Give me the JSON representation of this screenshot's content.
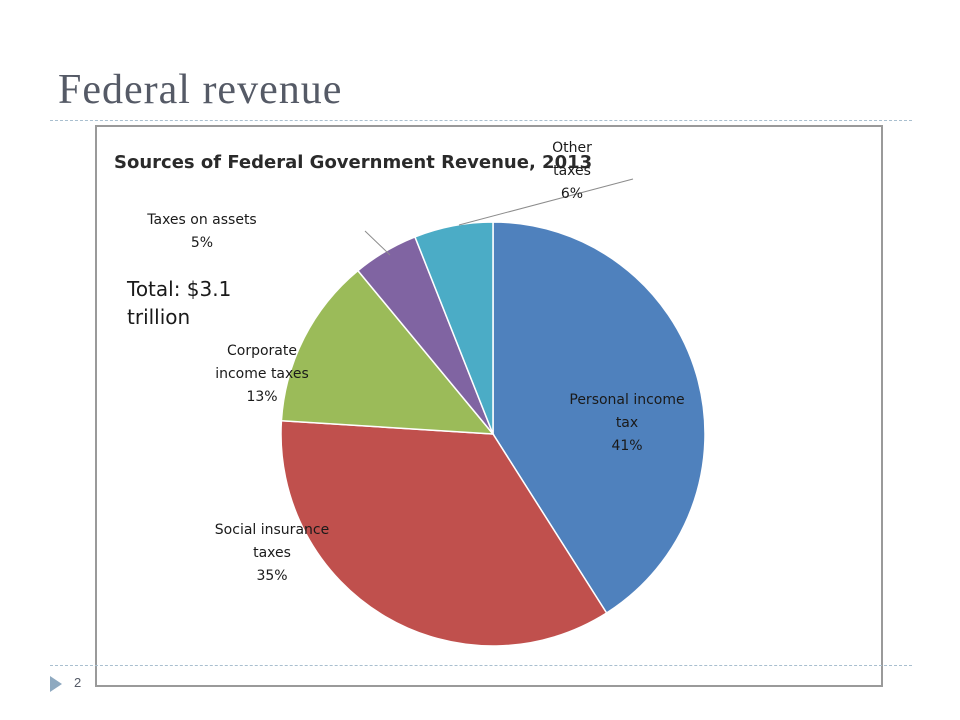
{
  "slide": {
    "title": "Federal revenue",
    "page_number": "2"
  },
  "chart_data": {
    "type": "pie",
    "title": "Sources of Federal Government Revenue, 2013",
    "note": "Total: $3.1 trillion",
    "slices": [
      {
        "label_lines": [
          "Personal income",
          "tax"
        ],
        "pct_text": "41%",
        "value": 41,
        "color": "#4f81bd"
      },
      {
        "label_lines": [
          "Social insurance",
          "taxes"
        ],
        "pct_text": "35%",
        "value": 35,
        "color": "#c0504d"
      },
      {
        "label_lines": [
          "Corporate",
          "income taxes"
        ],
        "pct_text": "13%",
        "value": 13,
        "color": "#9bbb59"
      },
      {
        "label_lines": [
          "Taxes on assets"
        ],
        "pct_text": "5%",
        "value": 5,
        "color": "#8064a2"
      },
      {
        "label_lines": [
          "Other",
          "taxes"
        ],
        "pct_text": "6%",
        "value": 6,
        "color": "#4bacc6"
      }
    ]
  }
}
